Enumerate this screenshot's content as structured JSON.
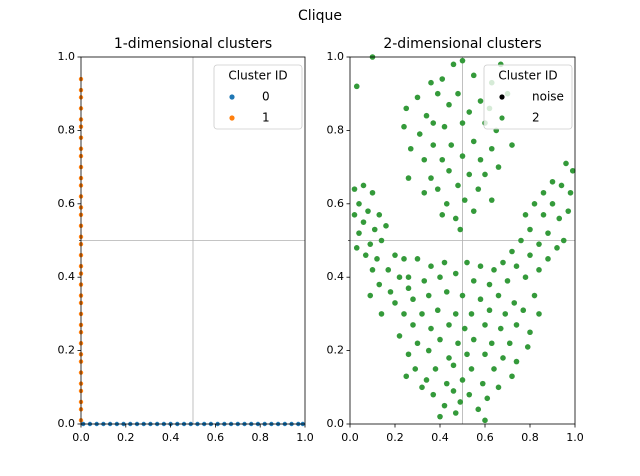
{
  "title": "Clique",
  "chart_data": [
    {
      "type": "scatter",
      "title": "1-dimensional clusters",
      "xlim": [
        0,
        1
      ],
      "ylim": [
        0,
        1
      ],
      "xticks": [
        {
          "value": 0,
          "label": "0.0"
        },
        {
          "value": 0.2,
          "label": "0.2"
        },
        {
          "value": 0.4,
          "label": "0.4"
        },
        {
          "value": 0.6,
          "label": "0.6"
        },
        {
          "value": 0.8,
          "label": "0.8"
        },
        {
          "value": 1,
          "label": "1.0"
        }
      ],
      "yticks": [
        {
          "value": 0,
          "label": "0.0"
        },
        {
          "value": 0.2,
          "label": "0.2"
        },
        {
          "value": 0.4,
          "label": "0.4"
        },
        {
          "value": 0.6,
          "label": "0.6"
        },
        {
          "value": 0.8,
          "label": "0.8"
        },
        {
          "value": 1,
          "label": "1.0"
        }
      ],
      "gridlines": {
        "x": [
          0.5
        ],
        "y": [
          0.5
        ]
      },
      "legend": {
        "title": "Cluster ID",
        "position": "upper right"
      },
      "series": [
        {
          "name": "0",
          "color": "#1f77b4",
          "x": [
            0.01,
            0.04,
            0.07,
            0.1,
            0.13,
            0.16,
            0.19,
            0.22,
            0.25,
            0.28,
            0.31,
            0.34,
            0.37,
            0.4,
            0.43,
            0.46,
            0.49,
            0.52,
            0.55,
            0.58,
            0.61,
            0.64,
            0.67,
            0.7,
            0.73,
            0.76,
            0.79,
            0.82,
            0.85,
            0.88,
            0.91,
            0.94,
            0.97,
            0.99
          ],
          "values": [
            0,
            0,
            0,
            0,
            0,
            0,
            0,
            0,
            0,
            0,
            0,
            0,
            0,
            0,
            0,
            0,
            0,
            0,
            0,
            0,
            0,
            0,
            0,
            0,
            0,
            0,
            0,
            0,
            0,
            0,
            0,
            0,
            0,
            0
          ]
        },
        {
          "name": "1",
          "color": "#ff7f0e",
          "x": [
            0,
            0,
            0,
            0,
            0,
            0,
            0,
            0,
            0,
            0,
            0,
            0,
            0,
            0,
            0,
            0,
            0,
            0,
            0,
            0,
            0,
            0,
            0,
            0,
            0,
            0,
            0,
            0,
            0,
            0,
            0,
            0,
            0,
            0,
            0,
            0
          ],
          "values": [
            0.01,
            0.04,
            0.06,
            0.09,
            0.11,
            0.14,
            0.17,
            0.19,
            0.22,
            0.25,
            0.27,
            0.3,
            0.33,
            0.35,
            0.38,
            0.41,
            0.43,
            0.46,
            0.49,
            0.51,
            0.54,
            0.57,
            0.59,
            0.62,
            0.65,
            0.67,
            0.7,
            0.73,
            0.75,
            0.78,
            0.81,
            0.83,
            0.86,
            0.89,
            0.91,
            0.94
          ]
        }
      ]
    },
    {
      "type": "scatter",
      "title": "2-dimensional clusters",
      "xlim": [
        0,
        1
      ],
      "ylim": [
        0,
        1
      ],
      "xticks": [
        {
          "value": 0,
          "label": "0.0"
        },
        {
          "value": 0.2,
          "label": "0.2"
        },
        {
          "value": 0.4,
          "label": "0.4"
        },
        {
          "value": 0.6,
          "label": "0.6"
        },
        {
          "value": 0.8,
          "label": "0.8"
        },
        {
          "value": 1,
          "label": "1.0"
        }
      ],
      "yticks": [
        {
          "value": 0,
          "label": "0.0"
        },
        {
          "value": 0.2,
          "label": "0.2"
        },
        {
          "value": 0.4,
          "label": "0.4"
        },
        {
          "value": 0.6,
          "label": "0.6"
        },
        {
          "value": 0.8,
          "label": "0.8"
        },
        {
          "value": 1,
          "label": "1.0"
        }
      ],
      "gridlines": {
        "x": [
          0.5
        ],
        "y": [
          0.5
        ]
      },
      "legend": {
        "title": "Cluster ID",
        "position": "upper right"
      },
      "series": [
        {
          "name": "noise",
          "color": "#000000",
          "x": [],
          "values": []
        },
        {
          "name": "2",
          "color": "#349a3a",
          "x": [
            0.1,
            0.03,
            0.36,
            0.46,
            0.5,
            0.41,
            0.55,
            0.67,
            0.3,
            0.39,
            0.48,
            0.58,
            0.63,
            0.7,
            0.25,
            0.34,
            0.44,
            0.53,
            0.62,
            0.24,
            0.37,
            0.42,
            0.5,
            0.6,
            0.65,
            0.31,
            0.27,
            0.37,
            0.45,
            0.55,
            0.63,
            0.72,
            0.33,
            0.41,
            0.5,
            0.58,
            0.66,
            0.26,
            0.36,
            0.44,
            0.53,
            0.6,
            0.39,
            0.48,
            0.57,
            0.33,
            0.43,
            0.51,
            0.63,
            0.47,
            0.55,
            0.41,
            0.49,
            0.02,
            0.06,
            0.1,
            0.04,
            0.08,
            0.13,
            0.02,
            0.06,
            0.11,
            0.16,
            0.04,
            0.09,
            0.14,
            0.07,
            0.12,
            0.2,
            0.24,
            0.03,
            0.1,
            0.17,
            0.13,
            0.22,
            0.09,
            0.18,
            0.26,
            0.96,
            0.99,
            0.9,
            0.94,
            0.86,
            0.98,
            0.82,
            0.9,
            0.97,
            0.78,
            0.86,
            0.93,
            0.8,
            0.88,
            0.76,
            0.84,
            0.92,
            0.72,
            0.8,
            0.88,
            0.95,
            0.74,
            0.84,
            0.68,
            0.78,
            0.3,
            0.36,
            0.42,
            0.52,
            0.58,
            0.64,
            0.26,
            0.33,
            0.4,
            0.47,
            0.55,
            0.62,
            0.7,
            0.2,
            0.28,
            0.35,
            0.43,
            0.5,
            0.58,
            0.66,
            0.73,
            0.82,
            0.24,
            0.32,
            0.39,
            0.47,
            0.54,
            0.62,
            0.69,
            0.77,
            0.84,
            0.14,
            0.28,
            0.36,
            0.44,
            0.51,
            0.6,
            0.67,
            0.74,
            0.8,
            0.22,
            0.3,
            0.4,
            0.48,
            0.55,
            0.63,
            0.71,
            0.79,
            0.26,
            0.35,
            0.44,
            0.52,
            0.6,
            0.68,
            0.74,
            0.29,
            0.38,
            0.46,
            0.54,
            0.64,
            0.72,
            0.25,
            0.34,
            0.43,
            0.5,
            0.59,
            0.66,
            0.37,
            0.46,
            0.53,
            0.61,
            0.32,
            0.42,
            0.49,
            0.57,
            0.4,
            0.47,
            0.6
          ],
          "values": [
            1.0,
            0.92,
            0.93,
            0.98,
            0.99,
            0.94,
            0.95,
            0.98,
            0.89,
            0.9,
            0.9,
            0.88,
            0.93,
            0.9,
            0.86,
            0.84,
            0.87,
            0.85,
            0.86,
            0.81,
            0.82,
            0.81,
            0.82,
            0.82,
            0.8,
            0.79,
            0.75,
            0.76,
            0.76,
            0.77,
            0.75,
            0.76,
            0.72,
            0.72,
            0.73,
            0.72,
            0.7,
            0.67,
            0.67,
            0.69,
            0.68,
            0.68,
            0.64,
            0.65,
            0.64,
            0.63,
            0.6,
            0.61,
            0.61,
            0.56,
            0.58,
            0.57,
            0.53,
            0.64,
            0.65,
            0.63,
            0.6,
            0.58,
            0.57,
            0.57,
            0.55,
            0.53,
            0.54,
            0.52,
            0.49,
            0.5,
            0.46,
            0.45,
            0.46,
            0.45,
            0.48,
            0.42,
            0.42,
            0.38,
            0.4,
            0.35,
            0.36,
            0.37,
            0.71,
            0.69,
            0.66,
            0.65,
            0.63,
            0.63,
            0.6,
            0.6,
            0.58,
            0.57,
            0.57,
            0.56,
            0.53,
            0.52,
            0.5,
            0.49,
            0.48,
            0.47,
            0.46,
            0.45,
            0.5,
            0.43,
            0.42,
            0.44,
            0.4,
            0.45,
            0.43,
            0.44,
            0.44,
            0.43,
            0.42,
            0.4,
            0.39,
            0.4,
            0.41,
            0.39,
            0.38,
            0.39,
            0.33,
            0.34,
            0.35,
            0.36,
            0.35,
            0.34,
            0.35,
            0.33,
            0.35,
            0.3,
            0.3,
            0.31,
            0.3,
            0.3,
            0.31,
            0.3,
            0.31,
            0.3,
            0.3,
            0.27,
            0.26,
            0.27,
            0.26,
            0.27,
            0.26,
            0.27,
            0.25,
            0.24,
            0.22,
            0.23,
            0.22,
            0.23,
            0.22,
            0.22,
            0.21,
            0.19,
            0.2,
            0.18,
            0.19,
            0.19,
            0.18,
            0.17,
            0.15,
            0.15,
            0.16,
            0.15,
            0.15,
            0.13,
            0.13,
            0.12,
            0.11,
            0.12,
            0.11,
            0.1,
            0.08,
            0.09,
            0.08,
            0.07,
            0.1,
            0.05,
            0.06,
            0.04,
            0.02,
            0.03,
            0.01
          ]
        }
      ]
    }
  ]
}
